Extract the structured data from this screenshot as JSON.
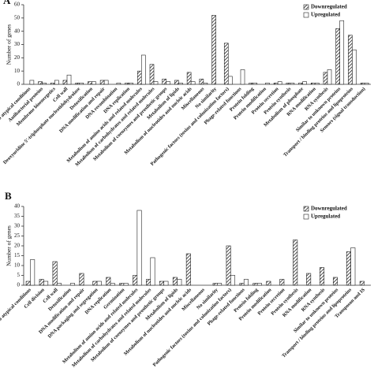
{
  "chart_data": [
    {
      "type": "bar",
      "title": "A",
      "y_label": "Number of genes",
      "categories": [
        "Adaptation to atypical conditions",
        "Antibacterial proteins",
        "Membrane bioenergetics",
        "Cell wall",
        "Deoxyuridine 5'-triphosphate nucleotidohydrolase",
        "Detoxification",
        "DNA modification and repair",
        "DNA recombination",
        "DNA replication",
        "Metabolism of amino acids and related molecules",
        "Metabolism of carbohydrates and related molecules",
        "Metabolism of coenzymes and prosthetic groups",
        "Metabolism of lipids",
        "Metabolism of nucleotides and nucleic acids",
        "Miscellaneous",
        "No similarity",
        "Pathogenic factors (toxins and colonization factors)",
        "Phage-related functions",
        "Protein folding",
        "Protein modification",
        "Protein secretion",
        "Protein synthesis",
        "Metabolism of phosphate",
        "RNA modification",
        "RNA synthesis",
        "Similar to unknown proteins",
        "Transport / binding proteins and lipoproteins",
        "Sensors (signal transduction)"
      ],
      "series": [
        {
          "name": "Downregulated",
          "color": "#222222",
          "hatch": "diagonal",
          "values": [
            0,
            2,
            1,
            3,
            1,
            2,
            3,
            0,
            1,
            10,
            15,
            4,
            3,
            9,
            4,
            52,
            31,
            0,
            1,
            0,
            1,
            1,
            1,
            1,
            9,
            42,
            37,
            1
          ]
        },
        {
          "name": "Upregulated",
          "color": "#ffffff",
          "values": [
            3,
            1,
            3,
            7,
            1,
            2,
            3,
            1,
            1,
            22,
            2,
            2,
            1,
            2,
            1,
            0,
            6,
            11,
            1,
            1,
            2,
            1,
            2,
            1,
            11,
            48,
            26,
            1
          ]
        }
      ],
      "ylim": [
        0,
        60
      ],
      "yticks": [
        0,
        10,
        20,
        30,
        40,
        50,
        60
      ],
      "legend": "top-right"
    },
    {
      "type": "bar",
      "title": "B",
      "y_label": "Number of genes",
      "categories": [
        "Adaptation to atypical conditions",
        "Cell division",
        "Cell wall",
        "Detoxification",
        "DNA modification and repair",
        "DNA packaging and segregation",
        "DNA replication",
        "Germination",
        "Metabolism of amino acids and related molecules",
        "Metabolism of carbohydrates and related molecules",
        "Metabolism of coenzymes and prosthetic groups",
        "Metabolism of lipids",
        "Metabolism of nucleotides and nucleic acids",
        "Miscellaneous",
        "No similarity",
        "Pathogenic factors (toxins and colonization factors)",
        "Phage-related functions",
        "Protein folding",
        "Protein modification",
        "Protein secretion",
        "Protein synthesis",
        "RNA modification",
        "RNA synthesis",
        "Similar to unknown proteins",
        "Transport / binding proteins and lipoproteins",
        "Transposon and IS"
      ],
      "series": [
        {
          "name": "Downregulated",
          "color": "#222222",
          "hatch": "diagonal",
          "values": [
            2,
            3,
            12,
            0,
            6,
            2,
            4,
            1,
            5,
            3,
            2,
            4,
            16,
            0,
            1,
            20,
            1,
            1,
            2,
            3,
            23,
            6,
            9,
            4,
            17,
            2
          ]
        },
        {
          "name": "Upregulated",
          "color": "#ffffff",
          "values": [
            13,
            2,
            1,
            1,
            0,
            2,
            1,
            1,
            38,
            14,
            2,
            3,
            0,
            0,
            1,
            5,
            3,
            1,
            0,
            0,
            0,
            0,
            0,
            0,
            19,
            0
          ]
        }
      ],
      "ylim": [
        0,
        40
      ],
      "yticks": [
        0,
        5,
        10,
        15,
        20,
        25,
        30,
        35,
        40
      ],
      "legend": "top-right"
    }
  ]
}
